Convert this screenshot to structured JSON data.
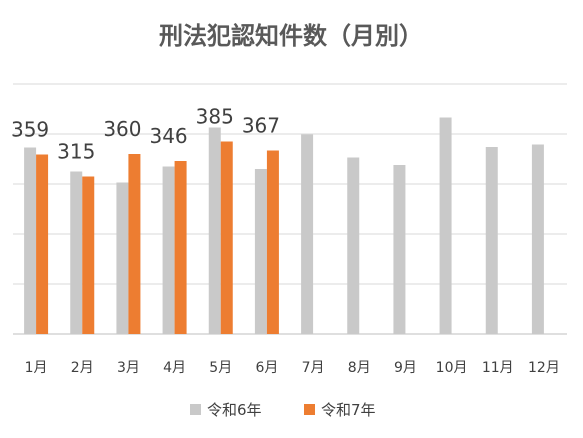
{
  "chart_data": {
    "type": "bar",
    "title": "刑法犯認知件数（月別）",
    "categories": [
      "1月",
      "2月",
      "3月",
      "4月",
      "5月",
      "6月",
      "7月",
      "8月",
      "9月",
      "10月",
      "11月",
      "12月"
    ],
    "series": [
      {
        "name": "令和6年",
        "color": "#c9c9c9",
        "values": [
          373,
          325,
          303,
          335,
          413,
          330,
          399,
          353,
          338,
          433,
          374,
          379
        ]
      },
      {
        "name": "令和7年",
        "color": "#ed7d31",
        "values": [
          359,
          315,
          360,
          346,
          385,
          367,
          null,
          null,
          null,
          null,
          null,
          null
        ],
        "data_labels": [
          "359",
          "315",
          "360",
          "346",
          "385",
          "367"
        ]
      }
    ],
    "ylim": [
      0,
      500
    ],
    "grid": true,
    "legend_position": "bottom"
  }
}
